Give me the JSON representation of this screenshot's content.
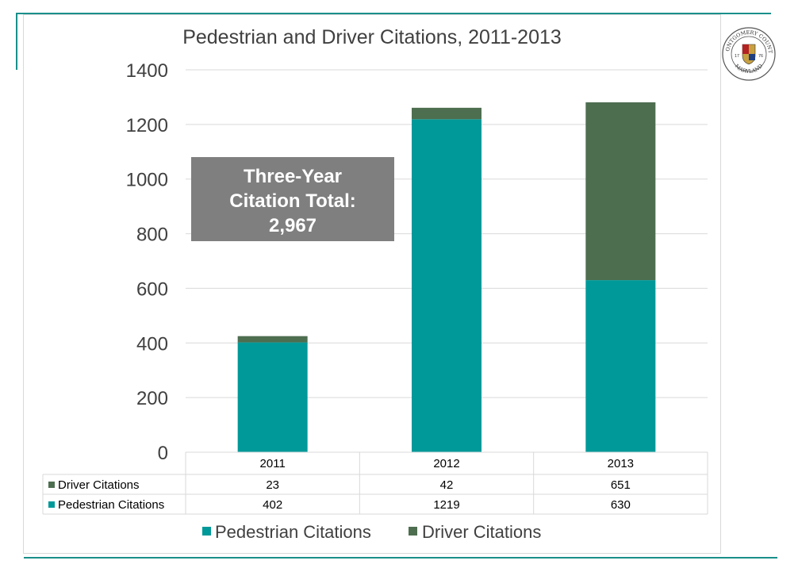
{
  "chart_data": {
    "type": "bar",
    "stacked": true,
    "title": "Pedestrian and Driver Citations, 2011-2013",
    "categories": [
      "2011",
      "2012",
      "2013"
    ],
    "series": [
      {
        "name": "Pedestrian Citations",
        "values": [
          402,
          1219,
          630
        ],
        "color": "#009999"
      },
      {
        "name": "Driver Citations",
        "values": [
          23,
          42,
          651
        ],
        "color": "#4e6e50"
      }
    ],
    "ylim": [
      0,
      1400
    ],
    "yticks": [
      "0",
      "200",
      "400",
      "600",
      "800",
      "1000",
      "1200",
      "1400"
    ],
    "grid": true,
    "data_table": {
      "rows": [
        {
          "label": "Driver Citations",
          "values": [
            "23",
            "42",
            "651"
          ]
        },
        {
          "label": "Pedestrian Citations",
          "values": [
            "402",
            "1219",
            "630"
          ]
        }
      ]
    },
    "legend": {
      "placement": "bottom",
      "entries": [
        "Pedestrian Citations",
        "Driver Citations"
      ]
    },
    "callout": {
      "lines": [
        "Three-Year",
        "Citation Total:",
        "2,967"
      ],
      "color": "#7f7f7f"
    }
  },
  "seal": {
    "top_text": "MONTGOMERY COUNTY",
    "bottom_text": "MARYLAND",
    "year_left": "17",
    "year_right": "76"
  }
}
